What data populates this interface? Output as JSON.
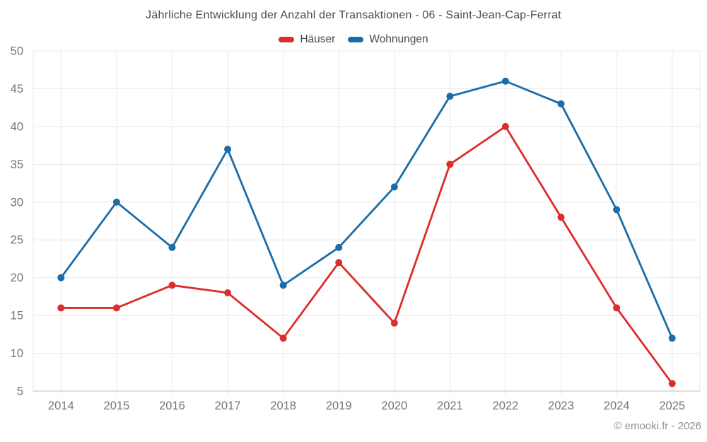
{
  "header": {
    "title": "Jährliche Entwicklung der Anzahl der Transaktionen - 06 - Saint-Jean-Cap-Ferrat"
  },
  "footer": {
    "text": "© emooki.fr - 2026"
  },
  "chart_data": {
    "type": "line",
    "title": "Jährliche Entwicklung der Anzahl der Transaktionen - 06 - Saint-Jean-Cap-Ferrat",
    "categories": [
      "2014",
      "2015",
      "2016",
      "2017",
      "2018",
      "2019",
      "2020",
      "2021",
      "2022",
      "2023",
      "2024",
      "2025"
    ],
    "series": [
      {
        "name": "Häuser",
        "color": "#dd2c2c",
        "values": [
          16,
          16,
          19,
          18,
          12,
          22,
          14,
          35,
          40,
          28,
          16,
          6
        ]
      },
      {
        "name": "Wohnungen",
        "color": "#1b6ca8",
        "values": [
          20,
          30,
          24,
          37,
          19,
          24,
          32,
          44,
          46,
          43,
          29,
          12
        ]
      }
    ],
    "xlabel": "",
    "ylabel": "",
    "ylim": [
      5,
      50
    ],
    "yticks": [
      5,
      10,
      15,
      20,
      25,
      30,
      35,
      40,
      45,
      50
    ],
    "grid": true,
    "legend_position": "top",
    "marker": "circle"
  },
  "colors": {
    "background": "#ffffff",
    "grid": "#e9e9e9",
    "axis": "#c9c9c9",
    "tick_label": "#757575",
    "title_text": "#4a4a4a",
    "footer_text": "#8e8e8e"
  }
}
